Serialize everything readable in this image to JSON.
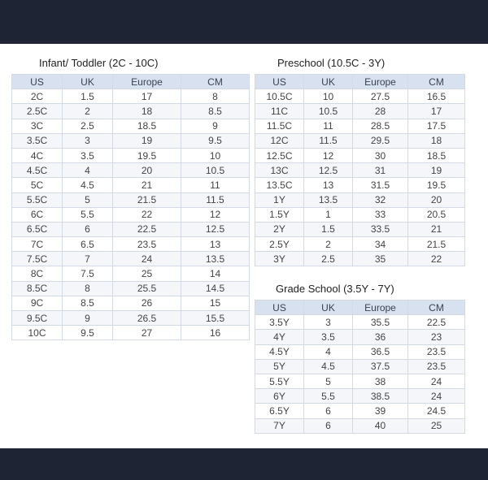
{
  "columns": [
    "US",
    "UK",
    "Europe",
    "CM"
  ],
  "infant": {
    "title": "Infant/ Toddler (2C - 10C)",
    "rows": [
      [
        "2C",
        "1.5",
        "17",
        "8"
      ],
      [
        "2.5C",
        "2",
        "18",
        "8.5"
      ],
      [
        "3C",
        "2.5",
        "18.5",
        "9"
      ],
      [
        "3.5C",
        "3",
        "19",
        "9.5"
      ],
      [
        "4C",
        "3.5",
        "19.5",
        "10"
      ],
      [
        "4.5C",
        "4",
        "20",
        "10.5"
      ],
      [
        "5C",
        "4.5",
        "21",
        "11"
      ],
      [
        "5.5C",
        "5",
        "21.5",
        "11.5"
      ],
      [
        "6C",
        "5.5",
        "22",
        "12"
      ],
      [
        "6.5C",
        "6",
        "22.5",
        "12.5"
      ],
      [
        "7C",
        "6.5",
        "23.5",
        "13"
      ],
      [
        "7.5C",
        "7",
        "24",
        "13.5"
      ],
      [
        "8C",
        "7.5",
        "25",
        "14"
      ],
      [
        "8.5C",
        "8",
        "25.5",
        "14.5"
      ],
      [
        "9C",
        "8.5",
        "26",
        "15"
      ],
      [
        "9.5C",
        "9",
        "26.5",
        "15.5"
      ],
      [
        "10C",
        "9.5",
        "27",
        "16"
      ]
    ]
  },
  "preschool": {
    "title": "Preschool (10.5C - 3Y)",
    "rows": [
      [
        "10.5C",
        "10",
        "27.5",
        "16.5"
      ],
      [
        "11C",
        "10.5",
        "28",
        "17"
      ],
      [
        "11.5C",
        "11",
        "28.5",
        "17.5"
      ],
      [
        "12C",
        "11.5",
        "29.5",
        "18"
      ],
      [
        "12.5C",
        "12",
        "30",
        "18.5"
      ],
      [
        "13C",
        "12.5",
        "31",
        "19"
      ],
      [
        "13.5C",
        "13",
        "31.5",
        "19.5"
      ],
      [
        "1Y",
        "13.5",
        "32",
        "20"
      ],
      [
        "1.5Y",
        "1",
        "33",
        "20.5"
      ],
      [
        "2Y",
        "1.5",
        "33.5",
        "21"
      ],
      [
        "2.5Y",
        "2",
        "34",
        "21.5"
      ],
      [
        "3Y",
        "2.5",
        "35",
        "22"
      ]
    ]
  },
  "gradeschool": {
    "title": "Grade School (3.5Y - 7Y)",
    "rows": [
      [
        "3.5Y",
        "3",
        "35.5",
        "22.5"
      ],
      [
        "4Y",
        "3.5",
        "36",
        "23"
      ],
      [
        "4.5Y",
        "4",
        "36.5",
        "23.5"
      ],
      [
        "5Y",
        "4.5",
        "37.5",
        "23.5"
      ],
      [
        "5.5Y",
        "5",
        "38",
        "24"
      ],
      [
        "6Y",
        "5.5",
        "38.5",
        "24"
      ],
      [
        "6.5Y",
        "6",
        "39",
        "24.5"
      ],
      [
        "7Y",
        "6",
        "40",
        "25"
      ]
    ]
  }
}
